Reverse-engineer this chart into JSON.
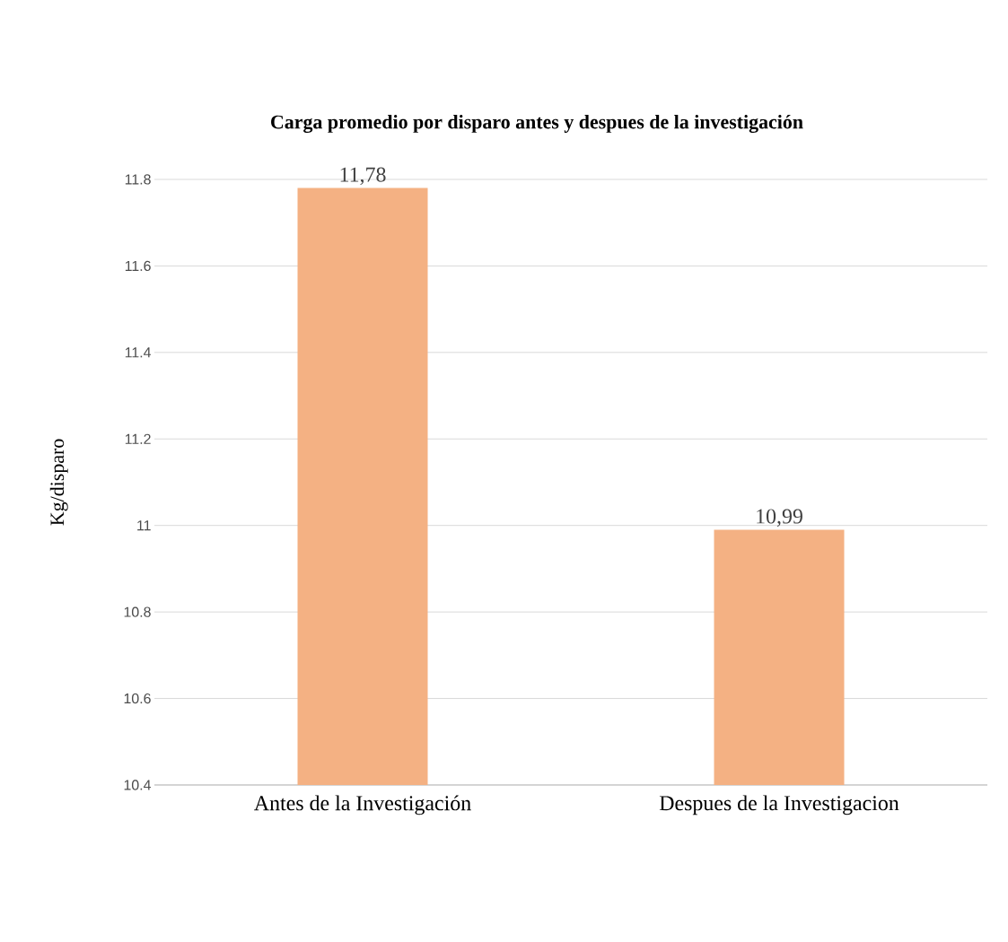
{
  "chart_data": {
    "type": "bar",
    "title": "Carga promedio por disparo antes y despues de la investigación",
    "ylabel": "Kg/disparo",
    "categories": [
      "Antes de la Investigación",
      "Despues de la Investigacion"
    ],
    "values": [
      11.78,
      10.99
    ],
    "value_labels": [
      "11,78",
      "10,99"
    ],
    "color": "#f4b183",
    "ylim": [
      10.4,
      11.8
    ],
    "yticks": [
      10.4,
      10.6,
      10.8,
      11,
      11.2,
      11.4,
      11.6,
      11.8
    ],
    "grid": "y"
  }
}
